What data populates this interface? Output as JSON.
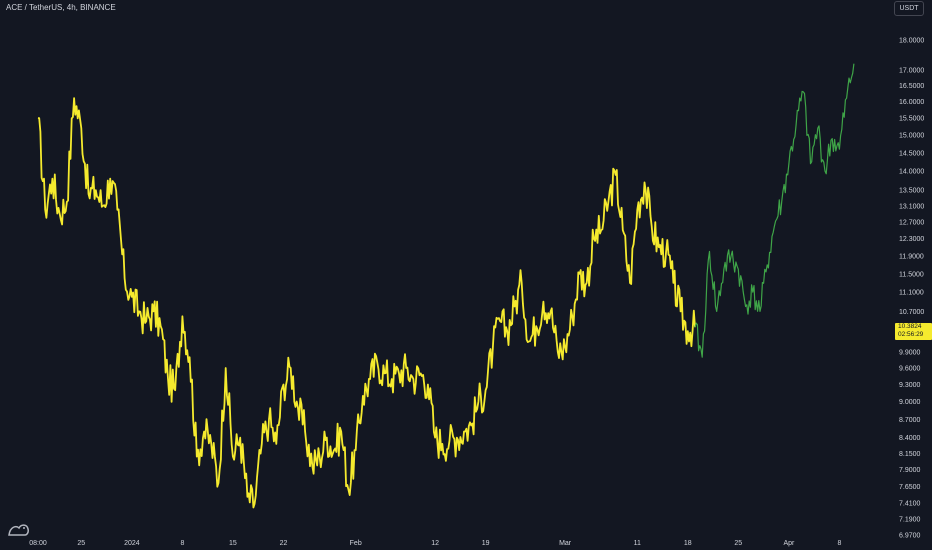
{
  "header": {
    "symbol_title": "ACE / TetherUS, 4h, BINANCE",
    "currency_button": "USDT"
  },
  "last_price": {
    "value": "10.3824",
    "countdown": "02:56:29"
  },
  "colors": {
    "background": "#131722",
    "history_line": "#f5ea2e",
    "projection_line": "#3fa548",
    "price_box": "#f5ea2e"
  },
  "logo": {
    "icon": "tradingview-logo-icon"
  },
  "chart_data": {
    "type": "line",
    "title": "ACE / TetherUS, 4h, BINANCE",
    "xlabel": "",
    "ylabel": "",
    "y_scale": "log",
    "grid": false,
    "x_tick_labels": [
      "08:00",
      "25",
      "2024",
      "8",
      "15",
      "22",
      "Feb",
      "12",
      "19",
      "Mar",
      "11",
      "18",
      "25",
      "Apr",
      "8"
    ],
    "y_tick_labels": [
      "18.0000",
      "17.0000",
      "16.5000",
      "16.0000",
      "15.5000",
      "15.0000",
      "14.5000",
      "14.0000",
      "13.5000",
      "13.1000",
      "12.7000",
      "12.3000",
      "11.9000",
      "11.5000",
      "11.1000",
      "10.7000",
      "9.9000",
      "9.6000",
      "9.3000",
      "9.0000",
      "8.7000",
      "8.4000",
      "8.1500",
      "7.9000",
      "7.6500",
      "7.4100",
      "7.1900",
      "6.9700"
    ],
    "x_range": [
      "2023-12-19",
      "2024-04-12"
    ],
    "series": [
      {
        "x": [
          "2023-12-19",
          "2023-12-20",
          "2023-12-21",
          "2023-12-22",
          "2023-12-23",
          "2023-12-24",
          "2023-12-25",
          "2023-12-26",
          "2023-12-27",
          "2023-12-28",
          "2023-12-29",
          "2023-12-30",
          "2023-12-31",
          "2024-01-01",
          "2024-01-02",
          "2024-01-03",
          "2024-01-04",
          "2024-01-05",
          "2024-01-06",
          "2024-01-07",
          "2024-01-08",
          "2024-01-09",
          "2024-01-10",
          "2024-01-11",
          "2024-01-12",
          "2024-01-13",
          "2024-01-14",
          "2024-01-15",
          "2024-01-16",
          "2024-01-17",
          "2024-01-18",
          "2024-01-19",
          "2024-01-20",
          "2024-01-21",
          "2024-01-22",
          "2024-01-23",
          "2024-01-24",
          "2024-01-25",
          "2024-01-26",
          "2024-01-27",
          "2024-01-28",
          "2024-01-29",
          "2024-01-30",
          "2024-01-31",
          "2024-02-01",
          "2024-02-02",
          "2024-02-03",
          "2024-02-04",
          "2024-02-05",
          "2024-02-06",
          "2024-02-07",
          "2024-02-08",
          "2024-02-09",
          "2024-02-10",
          "2024-02-11",
          "2024-02-12",
          "2024-02-13",
          "2024-02-14",
          "2024-02-15",
          "2024-02-16",
          "2024-02-17",
          "2024-02-18",
          "2024-02-19",
          "2024-02-20",
          "2024-02-21",
          "2024-02-22",
          "2024-02-23",
          "2024-02-24",
          "2024-02-25",
          "2024-02-26",
          "2024-02-27",
          "2024-02-28",
          "2024-02-29",
          "2024-03-01",
          "2024-03-02",
          "2024-03-03",
          "2024-03-04",
          "2024-03-05",
          "2024-03-06",
          "2024-03-07",
          "2024-03-08",
          "2024-03-09",
          "2024-03-10",
          "2024-03-11",
          "2024-03-12",
          "2024-03-13",
          "2024-03-14",
          "2024-03-15",
          "2024-03-16",
          "2024-03-17",
          "2024-03-18",
          "2024-03-19"
        ],
        "values": [
          15.5,
          13.0,
          13.8,
          12.9,
          13.2,
          16.1,
          15.2,
          13.4,
          13.5,
          13.1,
          13.8,
          13.0,
          11.4,
          11.0,
          10.7,
          10.5,
          10.7,
          10.4,
          9.4,
          9.2,
          10.6,
          9.8,
          8.1,
          8.5,
          8.3,
          7.7,
          9.6,
          8.1,
          8.4,
          7.5,
          7.4,
          8.3,
          8.7,
          8.3,
          9.3,
          9.6,
          8.9,
          8.5,
          7.95,
          8.1,
          8.4,
          8.2,
          8.5,
          7.6,
          8.2,
          9.1,
          9.4,
          9.7,
          9.5,
          9.4,
          9.5,
          9.6,
          9.4,
          9.5,
          9.3,
          8.4,
          8.3,
          8.35,
          8.4,
          8.5,
          8.6,
          9.0,
          9.2,
          10.0,
          10.5,
          10.3,
          10.8,
          11.3,
          10.1,
          10.4,
          10.9,
          10.7,
          9.9,
          10.0,
          10.6,
          11.5,
          11.3,
          12.3,
          12.5,
          13.2,
          13.9,
          12.5,
          11.3,
          13.0,
          13.7,
          12.6,
          12.1,
          12.0,
          11.3,
          10.7,
          10.3,
          10.38
        ]
      },
      {
        "x": [
          "2024-03-19",
          "2024-03-20",
          "2024-03-21",
          "2024-03-22",
          "2024-03-23",
          "2024-03-24",
          "2024-03-25",
          "2024-03-26",
          "2024-03-27",
          "2024-03-28",
          "2024-03-29",
          "2024-03-30",
          "2024-03-31",
          "2024-04-01",
          "2024-04-02",
          "2024-04-03",
          "2024-04-04",
          "2024-04-05",
          "2024-04-06",
          "2024-04-07",
          "2024-04-08",
          "2024-04-09",
          "2024-04-10"
        ],
        "values": [
          10.38,
          9.8,
          12.0,
          10.7,
          11.6,
          11.9,
          11.6,
          10.8,
          11.1,
          10.7,
          11.7,
          12.6,
          13.2,
          14.2,
          15.3,
          16.3,
          14.2,
          15.2,
          14.0,
          14.9,
          14.6,
          16.1,
          17.2
        ]
      }
    ]
  }
}
